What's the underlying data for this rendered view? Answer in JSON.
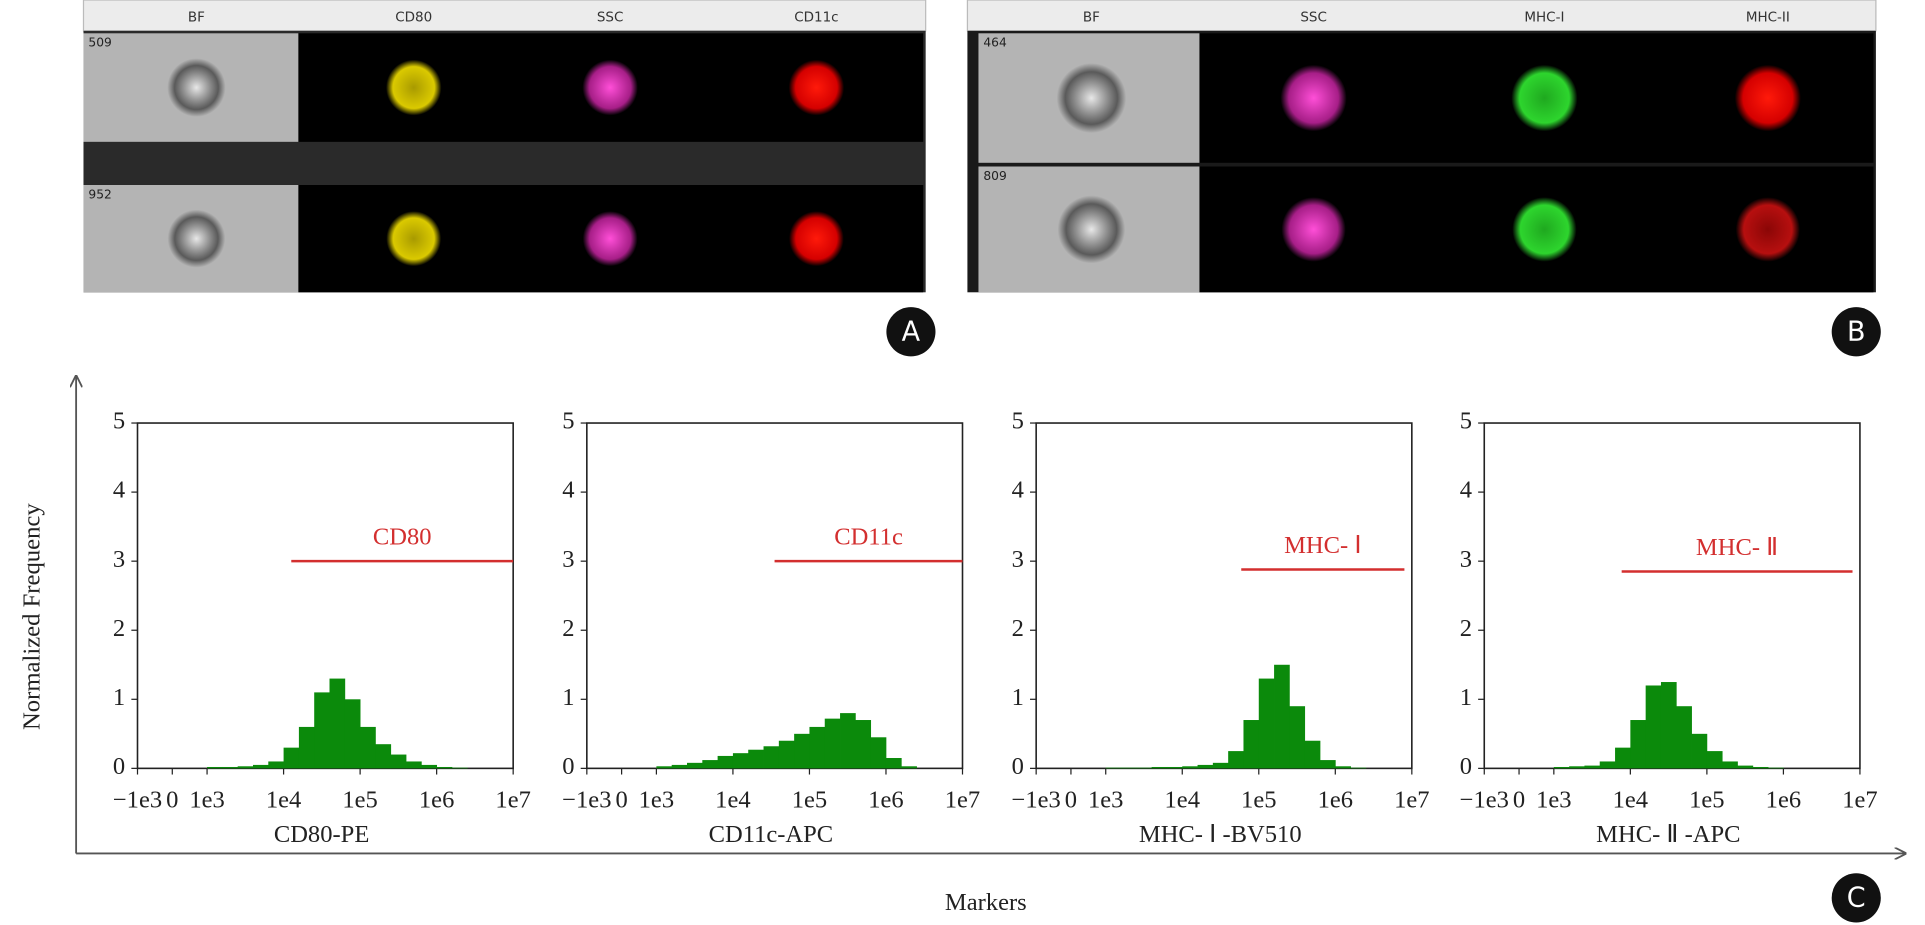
{
  "panels": [
    {
      "label": "A",
      "columns": [
        "BF",
        "CD80",
        "SSC",
        "CD11c"
      ],
      "rows": [
        "509",
        "952"
      ]
    },
    {
      "label": "B",
      "columns": [
        "BF",
        "SSC",
        "MHC-I",
        "MHC-II"
      ],
      "rows": [
        "464",
        "809"
      ]
    }
  ],
  "figure": {
    "label": "C",
    "y_label": "Normalized Frequency",
    "x_label": "Markers"
  },
  "chart_data": [
    {
      "type": "histogram",
      "x_label": "CD80-PE",
      "color": "#0b8a0b",
      "xscale": "biexponential",
      "xlim": [
        -1000,
        10000000
      ],
      "ylim": [
        0,
        5
      ],
      "yticks": [
        0,
        1,
        2,
        3,
        4,
        5
      ],
      "xticks": [
        {
          "value": -1000,
          "label": "−1e3"
        },
        0,
        {
          "value": 1000,
          "label": "1e3"
        },
        {
          "value": 10000,
          "label": "1e4"
        },
        {
          "value": 100000,
          "label": "1e5"
        },
        {
          "value": 1000000,
          "label": "1e6"
        },
        {
          "value": 10000000,
          "label": "1e7"
        }
      ],
      "bins": [
        1000,
        1585,
        2512,
        3981,
        6310,
        10000,
        15849,
        25119,
        39811,
        63096,
        100000,
        158489,
        251189,
        398107,
        630957,
        1000000,
        1584893,
        2511886,
        3981072,
        6309573,
        10000000
      ],
      "counts": [
        0.02,
        0.02,
        0.03,
        0.05,
        0.1,
        0.3,
        0.6,
        1.1,
        1.3,
        1.0,
        0.6,
        0.35,
        0.2,
        0.1,
        0.05,
        0.02,
        0.01,
        0,
        0,
        0
      ],
      "annotations": [
        {
          "text": "CD80",
          "y": 3,
          "x": [
            12600,
            10000000
          ]
        }
      ]
    },
    {
      "type": "histogram",
      "x_label": "CD11c-APC",
      "color": "#0b8a0b",
      "xscale": "biexponential",
      "xlim": [
        -1000,
        10000000
      ],
      "ylim": [
        0,
        5
      ],
      "yticks": [
        0,
        1,
        2,
        3,
        4,
        5
      ],
      "xticks": [
        {
          "value": -1000,
          "label": "−1e3"
        },
        0,
        {
          "value": 1000,
          "label": "1e3"
        },
        {
          "value": 10000,
          "label": "1e4"
        },
        {
          "value": 100000,
          "label": "1e5"
        },
        {
          "value": 1000000,
          "label": "1e6"
        },
        {
          "value": 10000000,
          "label": "1e7"
        }
      ],
      "bins": [
        1000,
        1585,
        2512,
        3981,
        6310,
        10000,
        15849,
        25119,
        39811,
        63096,
        100000,
        158489,
        251189,
        398107,
        630957,
        1000000,
        1584893,
        2511886,
        3981072,
        6309573,
        10000000
      ],
      "counts": [
        0.03,
        0.05,
        0.08,
        0.12,
        0.18,
        0.22,
        0.27,
        0.32,
        0.4,
        0.5,
        0.6,
        0.72,
        0.8,
        0.7,
        0.45,
        0.15,
        0.03,
        0,
        0,
        0
      ],
      "annotations": [
        {
          "text": "CD11c",
          "y": 3,
          "x": [
            35000,
            10000000
          ]
        }
      ]
    },
    {
      "type": "histogram",
      "x_label": "MHC- Ⅰ -BV510",
      "color": "#0b8a0b",
      "xscale": "biexponential",
      "xlim": [
        -1000,
        10000000
      ],
      "ylim": [
        0,
        5
      ],
      "yticks": [
        0,
        1,
        2,
        3,
        4,
        5
      ],
      "xticks": [
        {
          "value": -1000,
          "label": "−1e3"
        },
        0,
        {
          "value": 1000,
          "label": "1e3"
        },
        {
          "value": 10000,
          "label": "1e4"
        },
        {
          "value": 100000,
          "label": "1e5"
        },
        {
          "value": 1000000,
          "label": "1e6"
        },
        {
          "value": 10000000,
          "label": "1e7"
        }
      ],
      "bins": [
        1000,
        1585,
        2512,
        3981,
        6310,
        10000,
        15849,
        25119,
        39811,
        63096,
        100000,
        158489,
        251189,
        398107,
        630957,
        1000000,
        1584893,
        2511886,
        3981072,
        6309573,
        10000000
      ],
      "counts": [
        0.01,
        0.01,
        0.01,
        0.02,
        0.02,
        0.03,
        0.05,
        0.08,
        0.25,
        0.7,
        1.3,
        1.5,
        0.9,
        0.4,
        0.12,
        0.03,
        0.01,
        0,
        0,
        0
      ],
      "annotations": [
        {
          "text": "MHC- Ⅰ",
          "y": 2.88,
          "x": [
            59000,
            8000000
          ]
        }
      ]
    },
    {
      "type": "histogram",
      "x_label": "MHC- Ⅱ -APC",
      "color": "#0b8a0b",
      "xscale": "biexponential",
      "xlim": [
        -1000,
        10000000
      ],
      "ylim": [
        0,
        5
      ],
      "yticks": [
        0,
        1,
        2,
        3,
        4,
        5
      ],
      "xticks": [
        {
          "value": -1000,
          "label": "−1e3"
        },
        0,
        {
          "value": 1000,
          "label": "1e3"
        },
        {
          "value": 10000,
          "label": "1e4"
        },
        {
          "value": 100000,
          "label": "1e5"
        },
        {
          "value": 1000000,
          "label": "1e6"
        },
        {
          "value": 10000000,
          "label": "1e7"
        }
      ],
      "bins": [
        1000,
        1585,
        2512,
        3981,
        6310,
        10000,
        15849,
        25119,
        39811,
        63096,
        100000,
        158489,
        251189,
        398107,
        630957,
        1000000,
        1584893,
        2511886,
        3981072,
        6309573,
        10000000
      ],
      "counts": [
        0.02,
        0.03,
        0.04,
        0.1,
        0.3,
        0.7,
        1.2,
        1.25,
        0.9,
        0.5,
        0.25,
        0.1,
        0.04,
        0.02,
        0.01,
        0,
        0,
        0,
        0,
        0
      ],
      "annotations": [
        {
          "text": "MHC- Ⅱ",
          "y": 2.85,
          "x": [
            7700,
            8000000
          ]
        }
      ]
    }
  ]
}
